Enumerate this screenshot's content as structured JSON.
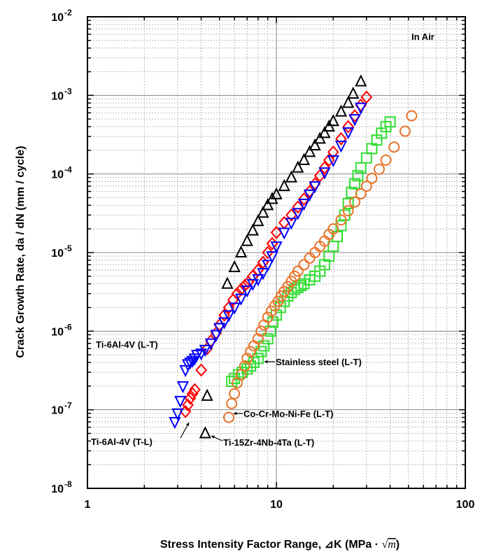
{
  "chart_data": {
    "type": "scatter",
    "title": "",
    "xlabel": "Stress Intensity Factor Range, ⊿K (MPa · √m)",
    "xlabel_main": "Stress Intensity Factor Range, ⊿K (MPa · ",
    "xlabel_sqrt": "m",
    "xlabel_close": ")",
    "ylabel": "Crack Growth Rate, da / dN (mm / cycle)",
    "x_scale": "log",
    "y_scale": "log",
    "xlim": [
      1,
      100
    ],
    "ylim": [
      1e-08,
      0.01
    ],
    "x_ticks": [
      "1",
      "10",
      "100"
    ],
    "y_ticks": [
      {
        "base": "10",
        "exp": "-8"
      },
      {
        "base": "10",
        "exp": "-7"
      },
      {
        "base": "10",
        "exp": "-6"
      },
      {
        "base": "10",
        "exp": "-5"
      },
      {
        "base": "10",
        "exp": "-4"
      },
      {
        "base": "10",
        "exp": "-3"
      },
      {
        "base": "10",
        "exp": "-2"
      }
    ],
    "grid": true,
    "inset_label": "In Air",
    "annotations": [
      {
        "text": "Ti-6Al-4V (L-T)",
        "series": "ti64_lt"
      },
      {
        "text": "Ti-6Al-4V (T-L)",
        "series": "ti64_tl"
      },
      {
        "text": "Ti-15Zr-4Nb-4Ta (L-T)",
        "series": "ti15zr"
      },
      {
        "text": "Co-Cr-Mo-Ni-Fe (L-T)",
        "series": "cocr"
      },
      {
        "text": "Stainless steel (L-T)",
        "series": "ss"
      }
    ],
    "series": [
      {
        "key": "ti15zr",
        "marker": "triangle-up",
        "color": "#000000",
        "x": [
          4.2,
          4.3,
          5.5,
          6.0,
          6.5,
          7.0,
          7.5,
          8.0,
          8.5,
          9.0,
          9.5,
          10.0,
          11.0,
          12.0,
          13.0,
          14.0,
          15.0,
          16.0,
          17.0,
          18.0,
          19.0,
          20.0,
          22.0,
          24.0,
          25.5,
          28.0
        ],
        "y": [
          5e-08,
          1.5e-07,
          4e-06,
          6.5e-06,
          1e-05,
          1.4e-05,
          1.9e-05,
          2.5e-05,
          3.2e-05,
          4e-05,
          4.8e-05,
          5.5e-05,
          7e-05,
          9e-05,
          0.00012,
          0.00015,
          0.00019,
          0.00023,
          0.00028,
          0.00033,
          0.0004,
          0.00047,
          0.00062,
          0.0008,
          0.00105,
          0.0015
        ]
      },
      {
        "key": "ti64_tl",
        "marker": "diamond",
        "color": "#ff0000",
        "x": [
          3.3,
          3.4,
          3.5,
          3.6,
          3.7,
          4.0,
          4.3,
          4.5,
          4.8,
          5.0,
          5.3,
          5.6,
          5.9,
          6.2,
          6.5,
          6.8,
          7.1,
          7.5,
          8.0,
          8.5,
          9.0,
          9.5,
          10.0,
          11.0,
          12.0,
          13.0,
          14.0,
          15.0,
          16.0,
          17.0,
          18.0,
          19.0,
          20.0,
          22.0,
          24.0,
          26.0,
          28.0,
          30.0
        ],
        "y": [
          9.5e-08,
          1.15e-07,
          1.4e-07,
          1.6e-07,
          1.8e-07,
          3.2e-07,
          6e-07,
          7.5e-07,
          9.5e-07,
          1.2e-06,
          1.6e-06,
          2e-06,
          2.5e-06,
          3e-06,
          3.4e-06,
          3.8e-06,
          4.2e-06,
          5e-06,
          6e-06,
          7.5e-06,
          1e-05,
          1.3e-05,
          1.8e-05,
          2.4e-05,
          3e-05,
          3.8e-05,
          4.8e-05,
          6e-05,
          7.5e-05,
          9.5e-05,
          0.00012,
          0.00015,
          0.00019,
          0.00028,
          0.0004,
          0.00055,
          0.00075,
          0.00095
        ]
      },
      {
        "key": "ti64_lt",
        "marker": "triangle-down",
        "color": "#0000ff",
        "x": [
          2.9,
          3.0,
          3.1,
          3.2,
          3.3,
          3.4,
          3.5,
          3.6,
          3.7,
          3.8,
          4.0,
          4.2,
          4.5,
          4.8,
          5.0,
          5.3,
          5.6,
          6.0,
          6.5,
          7.0,
          7.5,
          8.0,
          8.5,
          9.0,
          9.5,
          10.0,
          11.0,
          12.0,
          13.0,
          14.0,
          15.0,
          16.0,
          18.0,
          20.0,
          22.0,
          24.0,
          26.0,
          28.0
        ],
        "y": [
          7e-08,
          9e-08,
          1.3e-07,
          2e-07,
          3.2e-07,
          3.8e-07,
          4e-07,
          4.2e-07,
          4.5e-07,
          5e-07,
          5.2e-07,
          5.8e-07,
          7e-07,
          9e-07,
          1.1e-06,
          1.3e-06,
          1.6e-06,
          2e-06,
          2.6e-06,
          3.3e-06,
          4e-06,
          4.6e-06,
          5.5e-06,
          7e-06,
          9e-06,
          1.2e-05,
          1.8e-05,
          2.4e-05,
          3.2e-05,
          4.2e-05,
          5.5e-05,
          7e-05,
          0.000105,
          0.00015,
          0.00023,
          0.00034,
          0.0005,
          0.0007
        ]
      },
      {
        "key": "ss",
        "marker": "square",
        "color": "#33dd33",
        "x": [
          5.8,
          6.0,
          6.3,
          6.6,
          7.0,
          7.3,
          7.6,
          8.0,
          8.3,
          8.6,
          9.0,
          9.3,
          9.6,
          10.0,
          10.5,
          11.0,
          11.5,
          12.0,
          12.5,
          13.0,
          13.5,
          14.0,
          15.0,
          16.0,
          17.0,
          18.0,
          19.0,
          20.0,
          21.0,
          22.0,
          23.0,
          24.0,
          25.0,
          26.0,
          27.0,
          28.0,
          30.0,
          32.0,
          34.0,
          36.0,
          38.0,
          40.0
        ],
        "y": [
          2.3e-07,
          2.5e-07,
          2.8e-07,
          3e-07,
          3.3e-07,
          3.6e-07,
          4e-07,
          4.5e-07,
          5.5e-07,
          6.5e-07,
          8e-07,
          1e-06,
          1.3e-06,
          1.6e-06,
          2e-06,
          2.4e-06,
          2.8e-06,
          3.1e-06,
          3.4e-06,
          3.6e-06,
          3.8e-06,
          4e-06,
          4.5e-06,
          5e-06,
          5.8e-06,
          7e-06,
          9e-06,
          1.2e-05,
          1.6e-05,
          2.2e-05,
          3e-05,
          4.2e-05,
          5.8e-05,
          7.5e-05,
          9.5e-05,
          0.00012,
          0.00016,
          0.00021,
          0.00027,
          0.00033,
          0.0004,
          0.00046
        ]
      },
      {
        "key": "cocr",
        "marker": "circle",
        "color": "#e8732a",
        "x": [
          5.6,
          5.8,
          6.0,
          6.2,
          6.5,
          6.8,
          7.0,
          7.3,
          7.6,
          8.0,
          8.3,
          8.6,
          9.0,
          9.4,
          9.8,
          10.2,
          10.6,
          11.0,
          11.5,
          12.0,
          12.5,
          13.0,
          14.0,
          15.0,
          16.0,
          17.0,
          18.0,
          19.0,
          20.0,
          22.0,
          24.0,
          26.0,
          28.0,
          30.0,
          32.0,
          35.0,
          38.0,
          42.0,
          48.0,
          52.0
        ],
        "y": [
          8e-08,
          1.2e-07,
          1.6e-07,
          2.2e-07,
          2.8e-07,
          3.6e-07,
          4.5e-07,
          5.5e-07,
          6.5e-07,
          8e-07,
          1e-06,
          1.2e-06,
          1.5e-06,
          1.8e-06,
          2.1e-06,
          2.4e-06,
          2.8e-06,
          3.2e-06,
          3.7e-06,
          4.3e-06,
          5e-06,
          5.8e-06,
          7e-06,
          8.5e-06,
          1e-05,
          1.2e-05,
          1.4e-05,
          1.7e-05,
          2e-05,
          2.6e-05,
          3.4e-05,
          4.4e-05,
          5.6e-05,
          7e-05,
          8.8e-05,
          0.000115,
          0.00015,
          0.00022,
          0.00035,
          0.00055
        ]
      }
    ]
  }
}
